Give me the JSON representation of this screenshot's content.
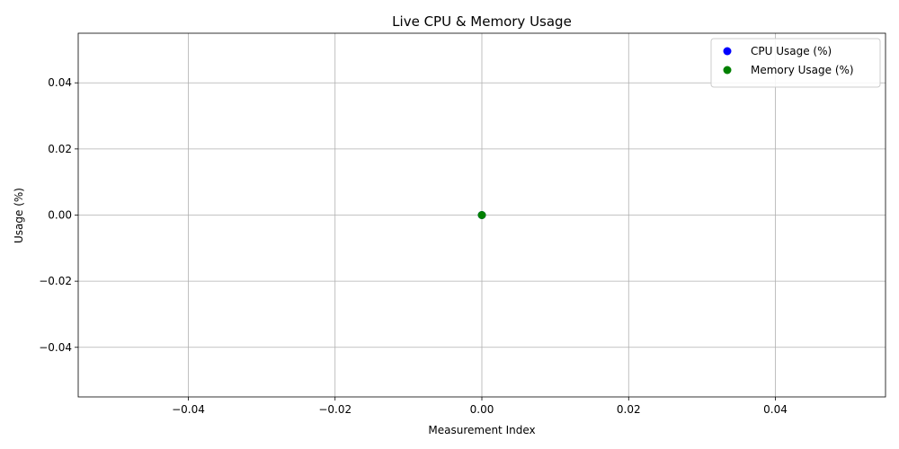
{
  "chart_data": {
    "type": "scatter",
    "title": "Live CPU & Memory Usage",
    "xlabel": "Measurement Index",
    "ylabel": "Usage (%)",
    "xlim": [
      -0.055,
      0.055
    ],
    "ylim": [
      -0.055,
      0.055
    ],
    "x_ticks": [
      -0.04,
      -0.02,
      0.0,
      0.02,
      0.04
    ],
    "x_tick_labels": [
      "−0.04",
      "−0.02",
      "0.00",
      "0.02",
      "0.04"
    ],
    "y_ticks": [
      -0.04,
      -0.02,
      0.0,
      0.02,
      0.04
    ],
    "y_tick_labels": [
      "−0.04",
      "−0.02",
      "0.00",
      "0.02",
      "0.04"
    ],
    "grid": true,
    "legend_position": "top-right",
    "series": [
      {
        "name": "CPU Usage (%)",
        "color": "#0000ff",
        "points": [
          {
            "x": 0,
            "y": 0
          }
        ]
      },
      {
        "name": "Memory Usage (%)",
        "color": "#008000",
        "points": [
          {
            "x": 0,
            "y": 0
          }
        ]
      }
    ]
  }
}
